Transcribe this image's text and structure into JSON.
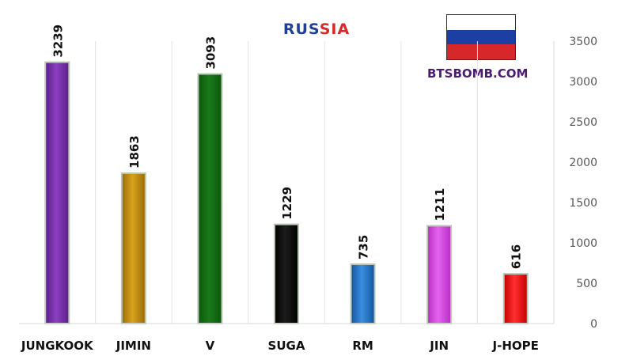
{
  "chart_data": {
    "type": "bar",
    "title_parts": [
      "RUS",
      "SIA"
    ],
    "categories": [
      "JUNGKOOK",
      "JIMIN",
      "V",
      "SUGA",
      "RM",
      "JIN",
      "J-HOPE"
    ],
    "values": [
      3239,
      1863,
      3093,
      1229,
      735,
      1211,
      616
    ],
    "bar_colors": [
      [
        "#8a3fbf",
        "#5a1e8a"
      ],
      [
        "#d8a21c",
        "#9a6c0a"
      ],
      [
        "#1a7a1a",
        "#0c560c"
      ],
      [
        "#1c1c1c",
        "#000000"
      ],
      [
        "#3b8ee0",
        "#12549e"
      ],
      [
        "#e563f0",
        "#b52ec2"
      ],
      [
        "#ff3030",
        "#c40000"
      ]
    ],
    "ylim": [
      0,
      3500
    ],
    "yticks": [
      0,
      500,
      1000,
      1500,
      2000,
      2500,
      3000,
      3500
    ],
    "axis_position": "right",
    "grid": "vertical separators",
    "legend": "none",
    "xlabel": "",
    "ylabel": ""
  },
  "watermark": "BTSBOMB.COM",
  "flag_colors": [
    "#ffffff",
    "#1c3fa3",
    "#d6272b"
  ],
  "title_colors": [
    "#1f3f99",
    "#d42a2a"
  ]
}
